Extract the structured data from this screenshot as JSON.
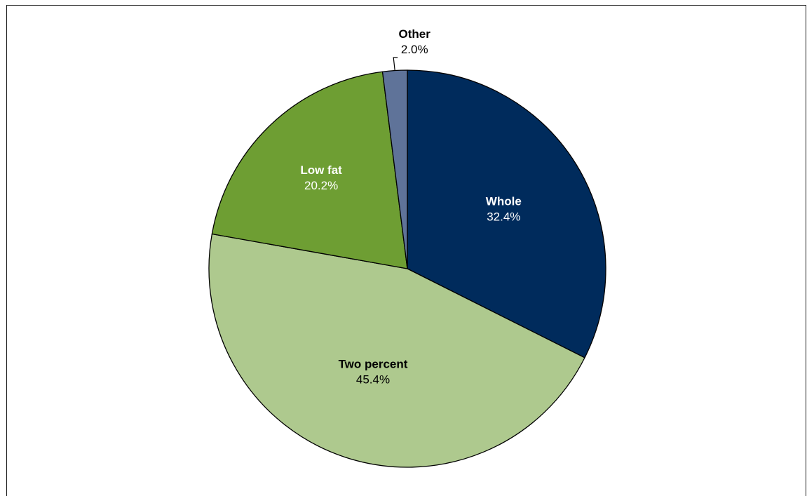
{
  "chart_data": {
    "type": "pie",
    "start_angle_deg": 0,
    "direction": "clockwise",
    "slices": [
      {
        "label": "Whole",
        "value_label": "32.4%",
        "value": 32.4,
        "color": "#002b5c",
        "text_color": "#ffffff"
      },
      {
        "label": "Two percent",
        "value_label": "45.4%",
        "value": 45.4,
        "color": "#aec98e",
        "text_color": "#000000"
      },
      {
        "label": "Low fat",
        "value_label": "20.2%",
        "value": 20.2,
        "color": "#6e9e33",
        "text_color": "#ffffff"
      },
      {
        "label": "Other",
        "value_label": "2.0%",
        "value": 2.0,
        "color": "#5f7399",
        "text_color": "#000000"
      }
    ],
    "legend": "none"
  }
}
